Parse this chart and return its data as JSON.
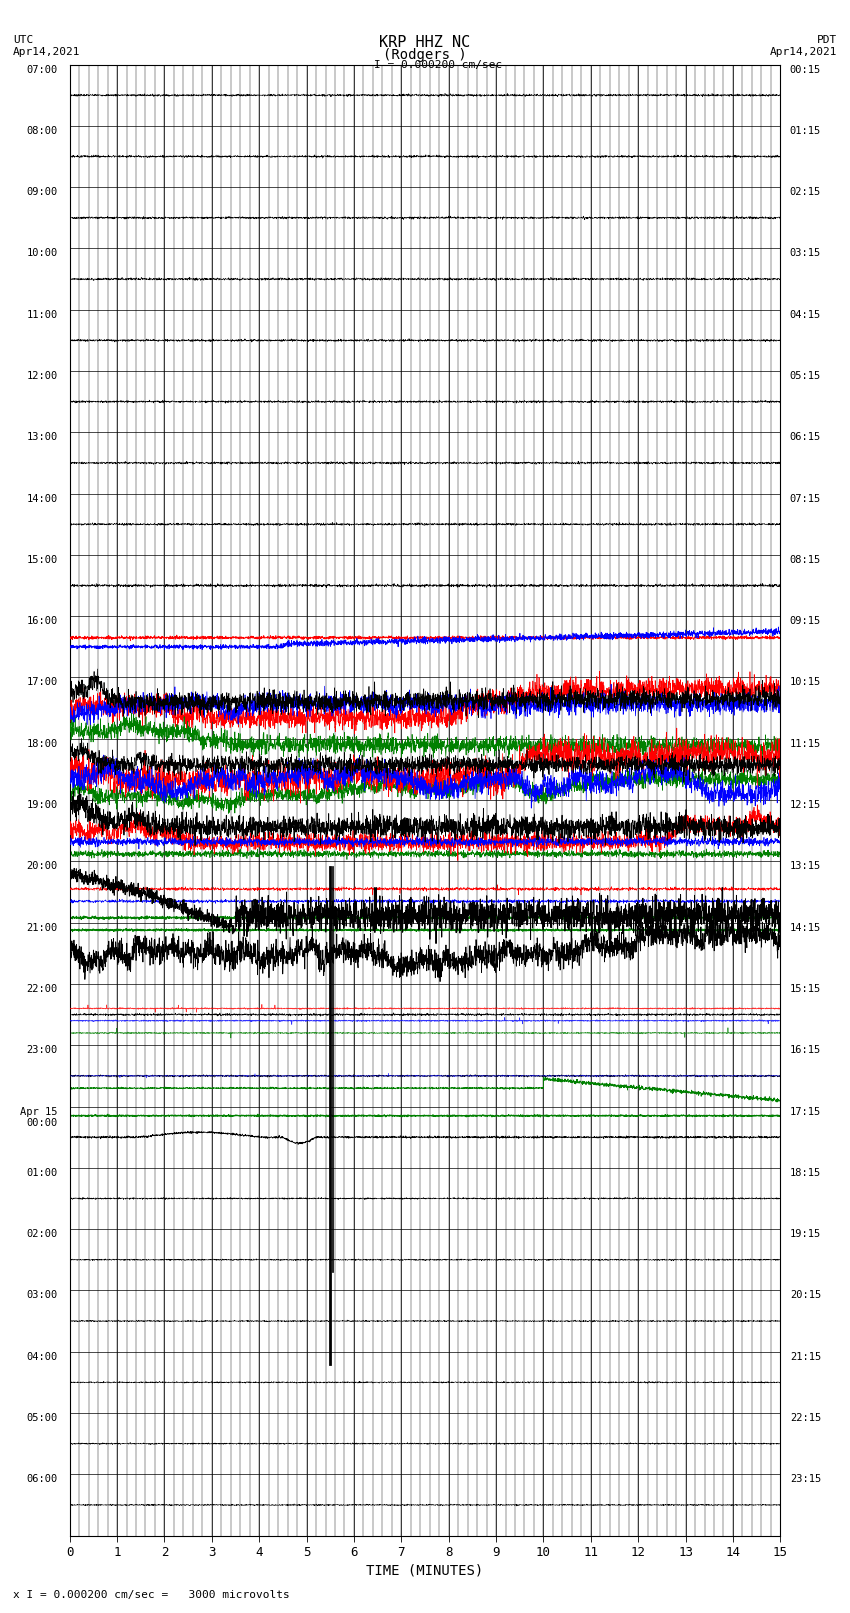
{
  "title_line1": "KRP HHZ NC",
  "title_line2": "(Rodgers )",
  "scale_label": "I = 0.000200 cm/sec",
  "bottom_label": "x I = 0.000200 cm/sec =   3000 microvolts",
  "utc_label": "UTC\nApr14,2021",
  "pdt_label": "PDT\nApr14,2021",
  "xlabel": "TIME (MINUTES)",
  "left_times": [
    "07:00",
    "08:00",
    "09:00",
    "10:00",
    "11:00",
    "12:00",
    "13:00",
    "14:00",
    "15:00",
    "16:00",
    "17:00",
    "18:00",
    "19:00",
    "20:00",
    "21:00",
    "22:00",
    "23:00",
    "Apr 15\n00:00",
    "01:00",
    "02:00",
    "03:00",
    "04:00",
    "05:00",
    "06:00"
  ],
  "right_times": [
    "00:15",
    "01:15",
    "02:15",
    "03:15",
    "04:15",
    "05:15",
    "06:15",
    "07:15",
    "08:15",
    "09:15",
    "10:15",
    "11:15",
    "12:15",
    "13:15",
    "14:15",
    "15:15",
    "16:15",
    "17:15",
    "18:15",
    "19:15",
    "20:15",
    "21:15",
    "22:15",
    "23:15"
  ],
  "xmin": 0,
  "xmax": 15,
  "xticks": [
    0,
    1,
    2,
    3,
    4,
    5,
    6,
    7,
    8,
    9,
    10,
    11,
    12,
    13,
    14,
    15
  ],
  "bg_color": "#ffffff",
  "num_rows": 24
}
